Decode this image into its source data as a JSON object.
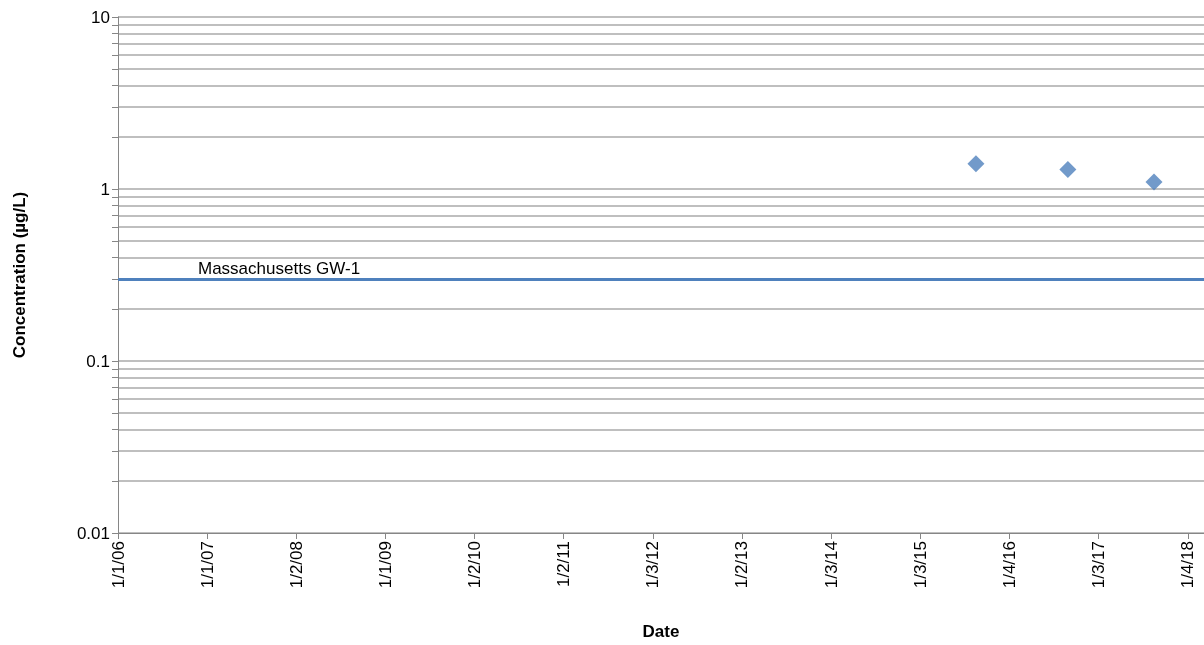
{
  "chart_data": {
    "type": "scatter",
    "xlabel": "Date",
    "ylabel": "Concentration (µg/L)",
    "x": [
      "2015-08-19",
      "2016-08-30",
      "2017-08-18"
    ],
    "series": [
      {
        "color": "#4f81bd",
        "values": [
          1.4,
          1.3,
          1.1
        ]
      }
    ],
    "marker": "diamond",
    "log": "y",
    "grid": "y",
    "xlim": [
      "2006-01-01",
      "2018-03-11"
    ],
    "xticks": [
      {
        "value": "2006-01-01",
        "label": "1/1/06"
      },
      {
        "value": "2007-01-01",
        "label": "1/1/07"
      },
      {
        "value": "2008-01-02",
        "label": "1/2/08"
      },
      {
        "value": "2009-01-01",
        "label": "1/1/09"
      },
      {
        "value": "2010-01-02",
        "label": "1/2/10"
      },
      {
        "value": "2011-01-02",
        "label": "1/2/11"
      },
      {
        "value": "2012-01-03",
        "label": "1/3/12"
      },
      {
        "value": "2013-01-02",
        "label": "1/2/13"
      },
      {
        "value": "2014-01-03",
        "label": "1/3/14"
      },
      {
        "value": "2015-01-03",
        "label": "1/3/15"
      },
      {
        "value": "2016-01-04",
        "label": "1/4/16"
      },
      {
        "value": "2017-01-03",
        "label": "1/3/17"
      },
      {
        "value": "2018-01-04",
        "label": "1/4/18"
      }
    ],
    "ylim": [
      0.01,
      10
    ],
    "yticks": [
      0.01,
      {
        "value": 0.02,
        "label": null
      },
      {
        "value": 0.03,
        "label": null
      },
      {
        "value": 0.04,
        "label": null
      },
      {
        "value": 0.05,
        "label": null
      },
      {
        "value": 0.06,
        "label": null
      },
      {
        "value": 0.07,
        "label": null
      },
      {
        "value": 0.08,
        "label": null
      },
      {
        "value": 0.09,
        "label": null
      },
      0.1,
      {
        "value": 0.2,
        "label": null
      },
      {
        "value": 0.3,
        "label": null
      },
      {
        "value": 0.4,
        "label": null
      },
      {
        "value": 0.5,
        "label": null
      },
      {
        "value": 0.6,
        "label": null
      },
      {
        "value": 0.7,
        "label": null
      },
      {
        "value": 0.8,
        "label": null
      },
      {
        "value": 0.9,
        "label": null
      },
      1,
      {
        "value": 2,
        "label": null
      },
      {
        "value": 3,
        "label": null
      },
      {
        "value": 4,
        "label": null
      },
      {
        "value": 5,
        "label": null
      },
      {
        "value": 6,
        "label": null
      },
      {
        "value": 7,
        "label": null
      },
      {
        "value": 8,
        "label": null
      },
      {
        "value": 9,
        "label": null
      },
      10
    ],
    "ref_lines": [
      {
        "axis": "y",
        "value": 0.3,
        "label": "Massachusetts GW-1",
        "color": "#4f81bd",
        "line_style": "solid"
      }
    ]
  }
}
